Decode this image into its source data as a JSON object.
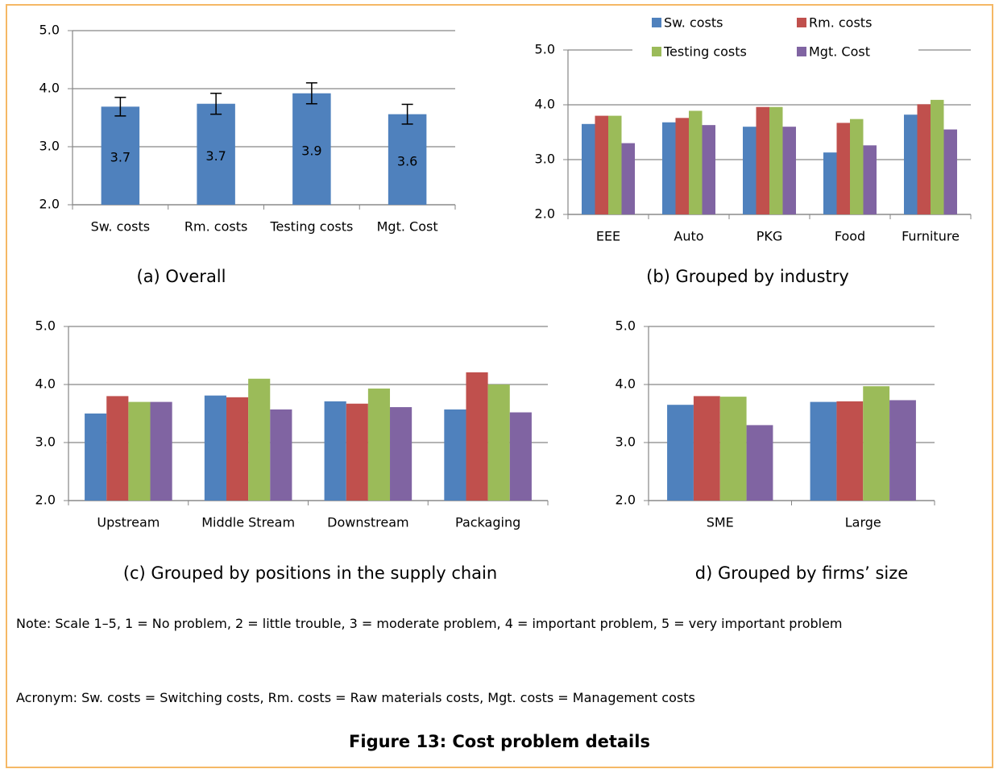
{
  "chart_data": [
    {
      "type": "bar",
      "caption": "(a) Overall",
      "categories": [
        "Sw. costs",
        "Rm. costs",
        "Testing costs",
        "Mgt. Cost"
      ],
      "values": [
        3.69,
        3.74,
        3.92,
        3.56
      ],
      "value_labels": [
        "3.7",
        "3.7",
        "3.9",
        "3.6"
      ],
      "errors": [
        0.16,
        0.18,
        0.18,
        0.17
      ],
      "color": "#4f81bd",
      "ylim": [
        2,
        5
      ],
      "yticks": [
        {
          "value": 2,
          "label": "2.0"
        },
        {
          "value": 3,
          "label": "3.0"
        },
        {
          "value": 4,
          "label": "4.0"
        },
        {
          "value": 5,
          "label": "5.0"
        }
      ],
      "grid": true
    },
    {
      "type": "bar",
      "caption": "(b) Grouped by industry",
      "categories": [
        "EEE",
        "Auto",
        "PKG",
        "Food",
        "Furniture"
      ],
      "series": [
        {
          "name": "Sw. costs",
          "color": "#4f81bd",
          "values": [
            3.65,
            3.68,
            3.6,
            3.13,
            3.82
          ]
        },
        {
          "name": "Rm. costs",
          "color": "#c0504d",
          "values": [
            3.8,
            3.76,
            3.96,
            3.67,
            4.01
          ]
        },
        {
          "name": "Testing costs",
          "color": "#9bbb59",
          "values": [
            3.8,
            3.89,
            3.96,
            3.74,
            4.09
          ]
        },
        {
          "name": "Mgt. Cost",
          "color": "#8064a2",
          "values": [
            3.3,
            3.63,
            3.6,
            3.26,
            3.55
          ]
        }
      ],
      "ylim": [
        2,
        5
      ],
      "yticks": [
        {
          "value": 2,
          "label": "2.0"
        },
        {
          "value": 3,
          "label": "3.0"
        },
        {
          "value": 4,
          "label": "4.0"
        },
        {
          "value": 5,
          "label": "5.0"
        }
      ],
      "grid": true,
      "legend": "top"
    },
    {
      "type": "bar",
      "caption": "(c) Grouped by positions in the supply chain",
      "categories": [
        "Upstream",
        "Middle Stream",
        "Downstream",
        "Packaging"
      ],
      "series": [
        {
          "color": "#4f81bd",
          "values": [
            3.5,
            3.81,
            3.71,
            3.57
          ]
        },
        {
          "color": "#c0504d",
          "values": [
            3.8,
            3.78,
            3.67,
            4.21
          ]
        },
        {
          "color": "#9bbb59",
          "values": [
            3.7,
            4.1,
            3.93,
            4.0
          ]
        },
        {
          "color": "#8064a2",
          "values": [
            3.7,
            3.57,
            3.61,
            3.52
          ]
        }
      ],
      "ylim": [
        2,
        5
      ],
      "yticks": [
        {
          "value": 2,
          "label": "2.0"
        },
        {
          "value": 3,
          "label": "3.0"
        },
        {
          "value": 4,
          "label": "4.0"
        },
        {
          "value": 5,
          "label": "5.0"
        }
      ],
      "grid": true
    },
    {
      "type": "bar",
      "caption": "d) Grouped by firms’ size",
      "categories": [
        "SME",
        "Large"
      ],
      "series": [
        {
          "color": "#4f81bd",
          "values": [
            3.65,
            3.7
          ]
        },
        {
          "color": "#c0504d",
          "values": [
            3.8,
            3.71
          ]
        },
        {
          "color": "#9bbb59",
          "values": [
            3.79,
            3.97
          ]
        },
        {
          "color": "#8064a2",
          "values": [
            3.3,
            3.73
          ]
        }
      ],
      "ylim": [
        2,
        5
      ],
      "yticks": [
        {
          "value": 2,
          "label": "2.0"
        },
        {
          "value": 3,
          "label": "3.0"
        },
        {
          "value": 4,
          "label": "4.0"
        },
        {
          "value": 5,
          "label": "5.0"
        }
      ],
      "grid": true
    }
  ],
  "note": "Note: Scale 1–5, 1 = No problem, 2 = little trouble, 3 = moderate problem, 4 = important problem, 5 = very important problem",
  "acronym": "Acronym: Sw. costs = Switching costs, Rm. costs = Raw materials costs, Mgt. costs = Management costs",
  "figure_caption": "Figure 13: Cost problem details"
}
